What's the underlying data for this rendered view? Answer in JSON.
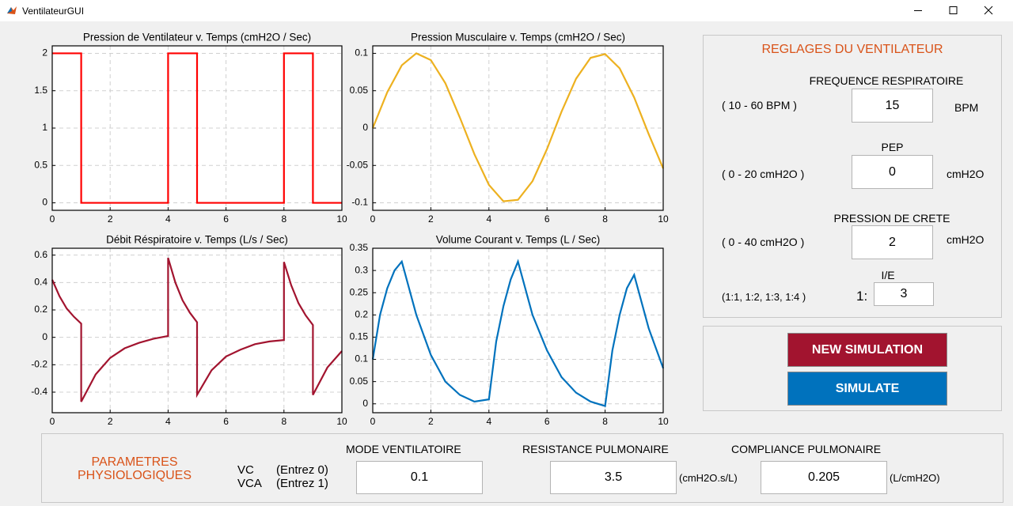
{
  "window_title": "VentilateurGUI",
  "chart_data": [
    {
      "type": "line",
      "title": "Pression de Ventilateur v. Temps (cmH2O / Sec)",
      "color": "#ff0000",
      "x": [
        0,
        1,
        1,
        4,
        4,
        5,
        5,
        8,
        8,
        9,
        9,
        10
      ],
      "values": [
        2,
        2,
        0,
        0,
        2,
        2,
        0,
        0,
        2,
        2,
        0,
        0
      ],
      "xlim": [
        0,
        10
      ],
      "xticks": [
        0,
        2,
        4,
        6,
        8,
        10
      ],
      "ylim": [
        -0.1,
        2.1
      ],
      "yticks": [
        0,
        0.5,
        1,
        1.5,
        2
      ],
      "grid": true
    },
    {
      "type": "line",
      "title": "Pression Musculaire v. Temps (cmH2O / Sec)",
      "color": "#edb120",
      "x": [
        0,
        0.5,
        1,
        1.5,
        2,
        2.5,
        3,
        3.5,
        4,
        4.5,
        5,
        5.5,
        6,
        6.5,
        7,
        7.5,
        8,
        8.5,
        9,
        9.5,
        10
      ],
      "values": [
        0,
        0.048,
        0.084,
        0.1,
        0.091,
        0.06,
        0.014,
        -0.035,
        -0.076,
        -0.098,
        -0.096,
        -0.071,
        -0.028,
        0.022,
        0.066,
        0.094,
        0.099,
        0.08,
        0.041,
        -0.008,
        -0.054
      ],
      "xlim": [
        0,
        10
      ],
      "xticks": [
        0,
        2,
        4,
        6,
        8,
        10
      ],
      "ylim": [
        -0.11,
        0.11
      ],
      "yticks": [
        -0.1,
        -0.05,
        0,
        0.05,
        0.1
      ],
      "grid": true
    },
    {
      "type": "line",
      "title": "Débit Réspiratoire v. Temps (L/s / Sec)",
      "color": "#a2142f",
      "x": [
        0,
        0.25,
        0.5,
        0.75,
        1,
        1,
        1.5,
        2,
        2.5,
        3,
        3.5,
        4,
        4,
        4.25,
        4.5,
        4.75,
        5,
        5,
        5.5,
        6,
        6.5,
        7,
        7.5,
        8,
        8,
        8.25,
        8.5,
        8.75,
        9,
        9,
        9.5,
        10
      ],
      "values": [
        0.42,
        0.3,
        0.21,
        0.15,
        0.1,
        -0.47,
        -0.27,
        -0.15,
        -0.08,
        -0.04,
        -0.01,
        0.01,
        0.58,
        0.4,
        0.27,
        0.18,
        0.11,
        -0.42,
        -0.24,
        -0.14,
        -0.09,
        -0.05,
        -0.03,
        -0.02,
        0.55,
        0.38,
        0.25,
        0.16,
        0.09,
        -0.42,
        -0.22,
        -0.1
      ],
      "xlim": [
        0,
        10
      ],
      "xticks": [
        0,
        2,
        4,
        6,
        8,
        10
      ],
      "ylim": [
        -0.55,
        0.65
      ],
      "yticks": [
        -0.4,
        -0.2,
        0,
        0.2,
        0.4,
        0.6
      ],
      "grid": true
    },
    {
      "type": "line",
      "title": "Volume Courant v. Temps (L / Sec)",
      "color": "#0072bd",
      "x": [
        0,
        0.25,
        0.5,
        0.75,
        1,
        1.5,
        2,
        2.5,
        3,
        3.5,
        4,
        4.25,
        4.5,
        4.75,
        5,
        5.5,
        6,
        6.5,
        7,
        7.5,
        8,
        8.25,
        8.5,
        8.75,
        9,
        9.5,
        10
      ],
      "values": [
        0.1,
        0.2,
        0.26,
        0.3,
        0.32,
        0.2,
        0.11,
        0.05,
        0.02,
        0.005,
        0.01,
        0.14,
        0.22,
        0.28,
        0.32,
        0.2,
        0.12,
        0.06,
        0.025,
        0.005,
        -0.005,
        0.12,
        0.2,
        0.26,
        0.29,
        0.17,
        0.08
      ],
      "xlim": [
        0,
        10
      ],
      "xticks": [
        0,
        2,
        4,
        6,
        8,
        10
      ],
      "ylim": [
        -0.02,
        0.35
      ],
      "yticks": [
        0,
        0.05,
        0.1,
        0.15,
        0.2,
        0.25,
        0.3,
        0.35
      ],
      "grid": true
    }
  ],
  "settings": {
    "title": "REGLAGES DU VENTILATEUR",
    "fields": [
      {
        "label": "FREQUENCE RESPIRATOIRE",
        "range": "( 10 - 60 BPM )",
        "value": 15,
        "unit": "BPM"
      },
      {
        "label": "PEP",
        "range": "( 0 - 20 cmH2O )",
        "value": 0,
        "unit": "cmH2O"
      },
      {
        "label": "PRESSION DE CRETE",
        "range": "( 0 - 40 cmH2O )",
        "value": 2,
        "unit": "cmH2O"
      },
      {
        "label": "I/E",
        "range": "(1:1, 1:2, 1:3, 1:4 )",
        "prefix": "1:",
        "value": 3
      }
    ]
  },
  "buttons": [
    "NEW SIMULATION",
    "SIMULATE"
  ],
  "physio": {
    "title": "PARAMETRES PHYSIOLOGIQUES",
    "modes": [
      [
        "VC",
        "(Entrez 0)"
      ],
      [
        "VCA",
        "(Entrez 1)"
      ]
    ],
    "fields": [
      {
        "label": "MODE VENTILATOIRE",
        "value": 0.1
      },
      {
        "label": "RESISTANCE PULMONAIRE",
        "value": 3.5,
        "unit": "(cmH2O.s/L)"
      },
      {
        "label": "COMPLIANCE PULMONAIRE",
        "value": 0.205,
        "unit": "(L/cmH2O)"
      }
    ]
  }
}
